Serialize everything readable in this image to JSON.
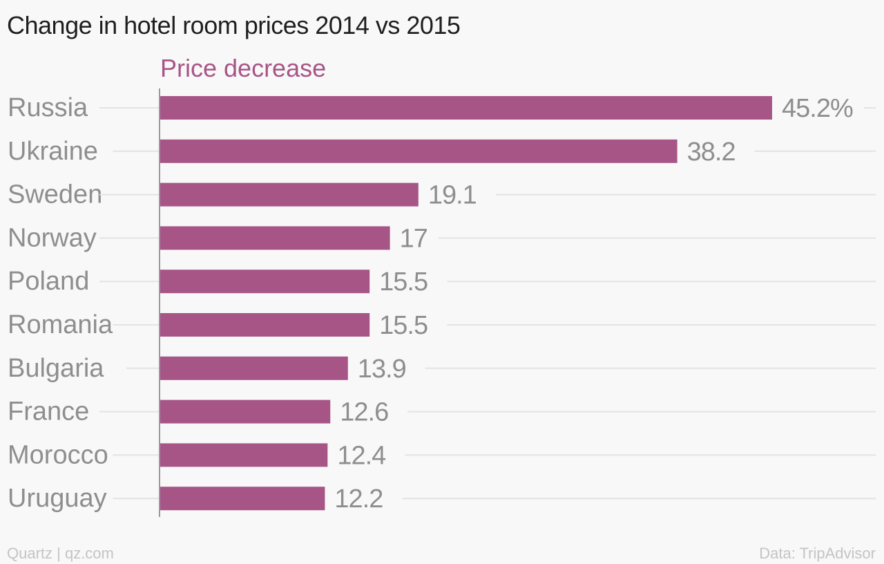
{
  "title": "Change in hotel room prices 2014 vs 2015",
  "footer": {
    "source_left": "Quartz | qz.com",
    "source_right": "Data: TripAdvisor"
  },
  "colors": {
    "bar": "#a75587",
    "series_label": "#a75587",
    "category_label": "#8e8e8e",
    "value_label": "#8e8e8e",
    "gridline": "#e3e3e3",
    "axis": "#9a9a9a"
  },
  "chart_data": {
    "type": "bar",
    "orientation": "horizontal",
    "title": "Change in hotel room prices 2014 vs 2015",
    "series_label": "Price decrease",
    "categories": [
      "Russia",
      "Ukraine",
      "Sweden",
      "Norway",
      "Poland",
      "Romania",
      "Bulgaria",
      "France",
      "Morocco",
      "Uruguay"
    ],
    "values": [
      45.2,
      38.2,
      19.1,
      17,
      15.5,
      15.5,
      13.9,
      12.6,
      12.4,
      12.2
    ],
    "value_labels": [
      "45.2%",
      "38.2",
      "19.1",
      "17",
      "15.5",
      "15.5",
      "13.9",
      "12.6",
      "12.4",
      "12.2"
    ],
    "unit": "%",
    "xlim": [
      0,
      50
    ],
    "grid": true
  }
}
